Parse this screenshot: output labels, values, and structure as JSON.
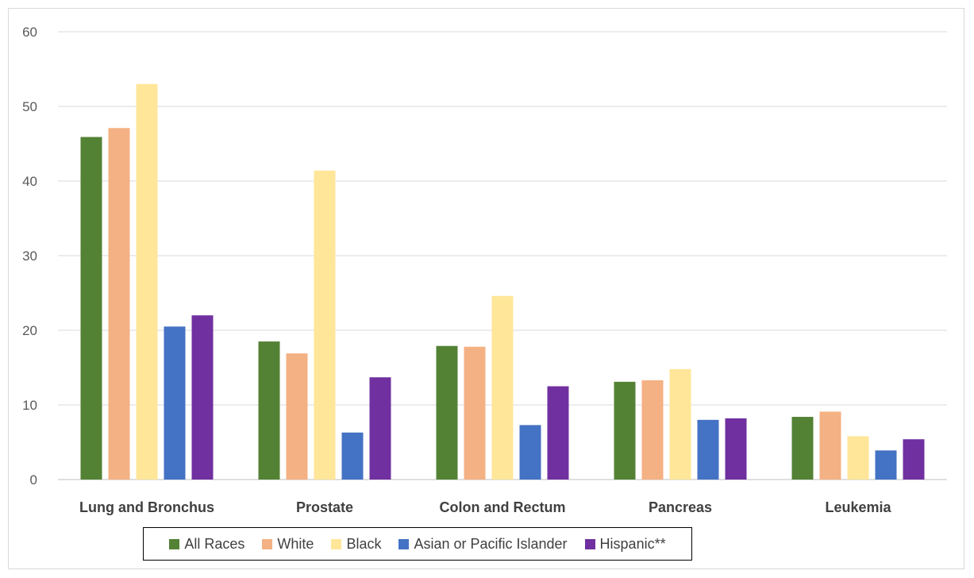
{
  "chart_data": {
    "type": "bar",
    "title": "",
    "xlabel": "",
    "ylabel": "",
    "ylim": [
      0,
      60
    ],
    "yticks": [
      0,
      10,
      20,
      30,
      40,
      50,
      60
    ],
    "grid": true,
    "legend_position": "bottom",
    "categories": [
      "Lung and Bronchus",
      "Prostate",
      "Colon and Rectum",
      "Pancreas",
      "Leukemia"
    ],
    "series": [
      {
        "name": "All Races",
        "color": "#548235",
        "values": [
          45.9,
          18.5,
          17.9,
          13.1,
          8.4
        ]
      },
      {
        "name": "White",
        "color": "#f4b183",
        "values": [
          47.1,
          16.9,
          17.8,
          13.3,
          9.1
        ]
      },
      {
        "name": "Black",
        "color": "#ffe699",
        "values": [
          53.0,
          41.4,
          24.6,
          14.8,
          5.8
        ]
      },
      {
        "name": "Asian or Pacific Islander",
        "color": "#4472c4",
        "values": [
          20.5,
          6.3,
          7.3,
          8.0,
          3.9
        ]
      },
      {
        "name": "Hispanic**",
        "color": "#7030a0",
        "values": [
          22.0,
          13.7,
          12.5,
          8.2,
          5.4
        ]
      }
    ]
  }
}
